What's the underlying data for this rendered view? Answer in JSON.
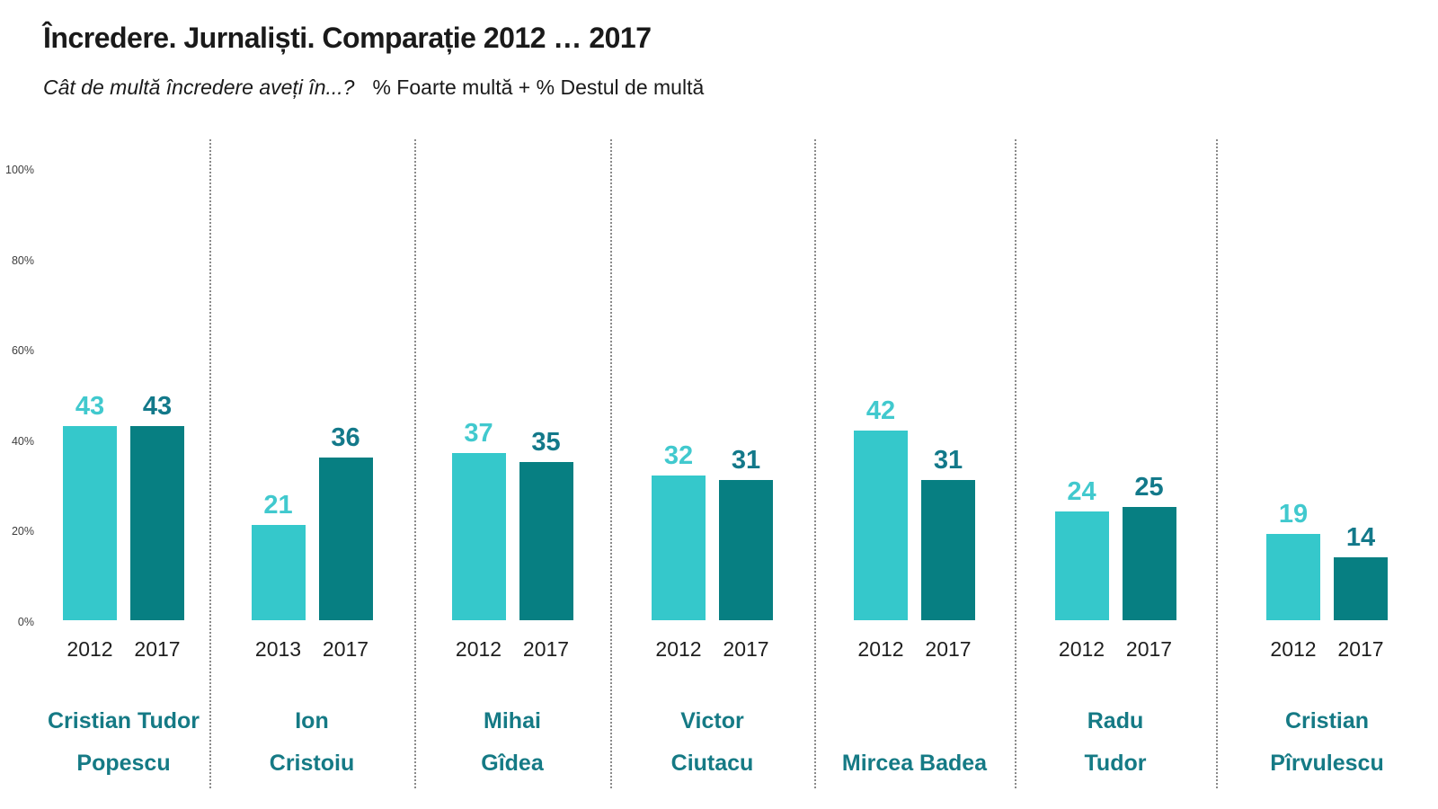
{
  "header": {
    "title": "Încredere. Jurnaliști. Comparație 2012 … 2017",
    "subtitle_question": "Cât de multă încredere aveți în...?",
    "subtitle_measure": "% Foarte multă + % Destul de multă"
  },
  "colors": {
    "bar_first": "#35C8CB",
    "bar_second": "#077F82",
    "value_label_first": "#41C9CE",
    "value_label_second": "#13798A",
    "name_color": "#157A85",
    "year_color": "#1F1F1F",
    "axis_color": "#3D3D3D",
    "separator_color": "#8A8A8A"
  },
  "chart_data": {
    "type": "bar",
    "title": "Încredere. Jurnaliști. Comparație 2012 … 2017",
    "subtitle": "Cât de multă încredere aveți în...?  % Foarte multă + % Destul de multă",
    "ylabel": "",
    "xlabel": "",
    "ylim": [
      0,
      100
    ],
    "grid": false,
    "legend": "none",
    "y_ticks": [
      "100%",
      "80%",
      "60%",
      "40%",
      "20%",
      "0%"
    ],
    "series_meaning": [
      "first year shown (light teal)",
      "2017 (dark teal)"
    ],
    "groups": [
      {
        "name_lines": [
          "Cristian Tudor",
          "Popescu"
        ],
        "bars": [
          {
            "year": "2012",
            "value": 43
          },
          {
            "year": "2017",
            "value": 43
          }
        ]
      },
      {
        "name_lines": [
          "Ion",
          "Cristoiu"
        ],
        "bars": [
          {
            "year": "2013",
            "value": 21
          },
          {
            "year": "2017",
            "value": 36
          }
        ]
      },
      {
        "name_lines": [
          "Mihai",
          "Gîdea"
        ],
        "bars": [
          {
            "year": "2012",
            "value": 37
          },
          {
            "year": "2017",
            "value": 35
          }
        ]
      },
      {
        "name_lines": [
          "Victor",
          "Ciutacu"
        ],
        "bars": [
          {
            "year": "2012",
            "value": 32
          },
          {
            "year": "2017",
            "value": 31
          }
        ]
      },
      {
        "name_lines": [
          "Mircea Badea"
        ],
        "bars": [
          {
            "year": "2012",
            "value": 42
          },
          {
            "year": "2017",
            "value": 31
          }
        ]
      },
      {
        "name_lines": [
          "Radu",
          "Tudor"
        ],
        "bars": [
          {
            "year": "2012",
            "value": 24
          },
          {
            "year": "2017",
            "value": 25
          }
        ]
      },
      {
        "name_lines": [
          "Cristian",
          "Pîrvulescu"
        ],
        "bars": [
          {
            "year": "2012",
            "value": 19
          },
          {
            "year": "2017",
            "value": 14
          }
        ]
      }
    ]
  }
}
